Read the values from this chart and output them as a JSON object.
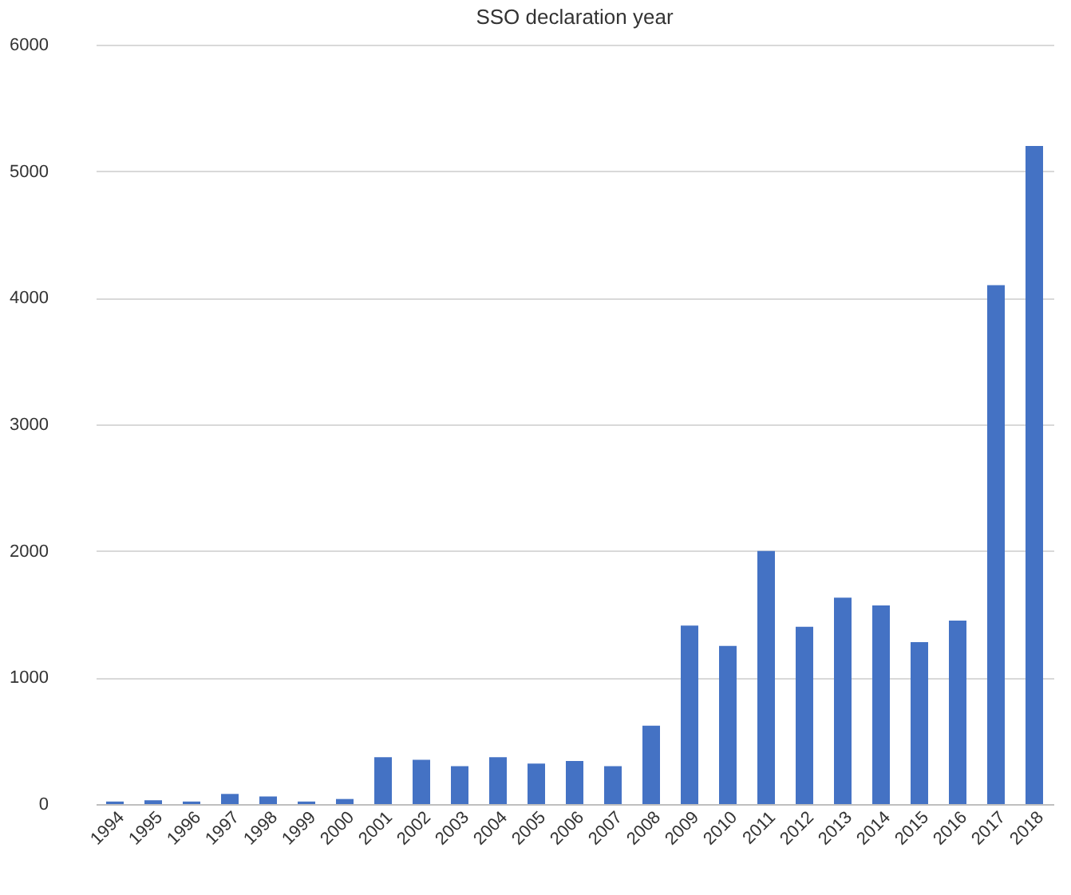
{
  "chart_data": {
    "type": "bar",
    "title": "SSO declaration year",
    "categories": [
      "1994",
      "1995",
      "1996",
      "1997",
      "1998",
      "1999",
      "2000",
      "2001",
      "2002",
      "2003",
      "2004",
      "2005",
      "2006",
      "2007",
      "2008",
      "2009",
      "2010",
      "2011",
      "2012",
      "2013",
      "2014",
      "2015",
      "2016",
      "2017",
      "2018"
    ],
    "values": [
      20,
      30,
      20,
      80,
      60,
      20,
      40,
      370,
      350,
      300,
      370,
      320,
      340,
      300,
      620,
      1410,
      1250,
      2000,
      1400,
      1630,
      1570,
      1280,
      1450,
      4100,
      5200
    ],
    "color": "#4472c4",
    "ylim": [
      0,
      6000
    ],
    "yticks": [
      0,
      1000,
      2000,
      3000,
      4000,
      5000,
      6000
    ],
    "grid": "y"
  }
}
